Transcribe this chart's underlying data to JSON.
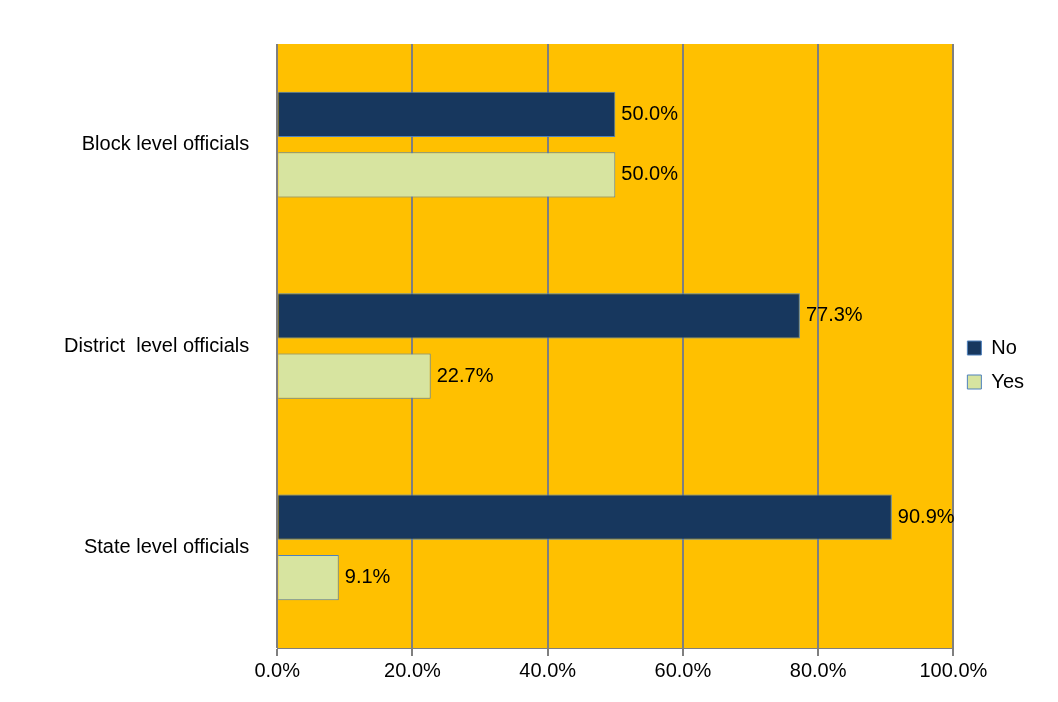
{
  "chart_data": {
    "type": "bar",
    "orientation": "horizontal",
    "categories": [
      "Block level officials",
      "District  level officials",
      "State level officials"
    ],
    "series": [
      {
        "name": "No",
        "color": "#17375e",
        "values": [
          50.0,
          77.3,
          90.9
        ],
        "value_labels": [
          "50.0%",
          "77.3%",
          "90.9%"
        ]
      },
      {
        "name": "Yes",
        "color": "#d7e4a0",
        "values": [
          50.0,
          22.7,
          9.1
        ],
        "value_labels": [
          "50.0%",
          "22.7%",
          "9.1%"
        ]
      }
    ],
    "xlim": [
      0,
      100
    ],
    "xticks": [
      {
        "value": 0,
        "label": "0.0%"
      },
      {
        "value": 20,
        "label": "20.0%"
      },
      {
        "value": 40,
        "label": "40.0%"
      },
      {
        "value": 60,
        "label": "60.0%"
      },
      {
        "value": 80,
        "label": "80.0%"
      },
      {
        "value": 100,
        "label": "100.0%"
      }
    ],
    "grid": "x",
    "legend": "right"
  }
}
